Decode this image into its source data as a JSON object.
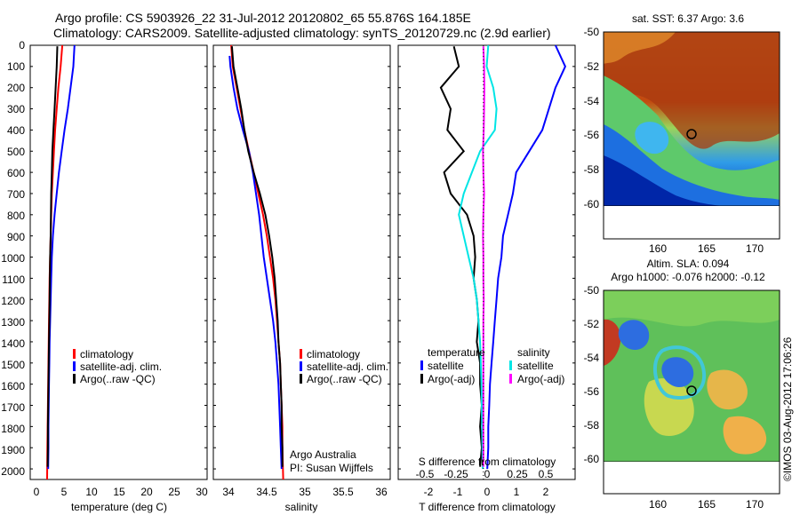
{
  "title": {
    "line1": "Argo profile: CS 5903926_22 31-Jul-2012 20120802_65 55.876S 164.185E",
    "line2": "Climatology: CARS2009. Satellite-adjusted climatology: synTS_20120729.nc (2.9d earlier)"
  },
  "depth_ticks": [
    "0",
    "100",
    "200",
    "300",
    "400",
    "500",
    "600",
    "700",
    "800",
    "900",
    "1000",
    "1100",
    "1200",
    "1300",
    "1400",
    "1500",
    "1600",
    "1700",
    "1800",
    "1900",
    "2000"
  ],
  "colors": {
    "climatology": "#ff0000",
    "satellite": "#0000ff",
    "argo": "#000000",
    "cyan": "#00e5e5",
    "magenta": "#ff00ff"
  },
  "panels": {
    "temperature": {
      "xlabel": "temperature (deg C)",
      "xticks": [
        "0",
        "5",
        "10",
        "15",
        "20",
        "25",
        "30"
      ],
      "legend": [
        "climatology",
        "satellite-adj. clim.",
        "Argo(..raw -QC)"
      ]
    },
    "salinity": {
      "xlabel": "salinity",
      "xticks": [
        "34",
        "34.5",
        "35",
        "35.5",
        "36"
      ],
      "legend": [
        "climatology",
        "satellite-adj. clim.",
        "Argo(..raw -QC)"
      ],
      "note1": "Argo Australia",
      "note2": "PI: Susan Wijffels"
    },
    "difference": {
      "xlabel": "T difference from climatology",
      "xticks": [
        "-2",
        "-1",
        "0",
        "1",
        "2"
      ],
      "s_label": "S difference from climatology",
      "s_ticks": [
        "-0.5",
        "-0.25",
        "0",
        "0.25",
        "0.5"
      ],
      "legend_temp_title": "temperature",
      "legend_sal_title": "salinity",
      "legend_temp": [
        "satellite",
        "Argo(-adj)"
      ],
      "legend_sal": [
        "satellite",
        "Argo(-adj)"
      ]
    }
  },
  "maps": {
    "sst_title": "sat. SST: 6.37 Argo: 3.6",
    "sla_title1": "Altim. SLA: 0.094",
    "sla_title2": "Argo h1000: -0.076 h2000: -0.12",
    "lat_ticks": [
      "-50",
      "-52",
      "-54",
      "-56",
      "-58",
      "-60"
    ],
    "lon_ticks": [
      "160",
      "165",
      "170"
    ],
    "float_position": {
      "lon": 164.185,
      "lat": -55.876
    }
  },
  "footer": "©IMOS 03-Aug-2012 17:06:26",
  "chart_data": [
    {
      "type": "line",
      "title": "",
      "xlabel": "temperature (deg C)",
      "ylabel": "",
      "xlim": [
        -1,
        31
      ],
      "ylim": [
        2050,
        0
      ],
      "series": [
        {
          "name": "climatology",
          "color": "#ff0000",
          "x": [
            4.8,
            4.5,
            4.1,
            3.8,
            3.5,
            3.3,
            3.1,
            2.9,
            2.8,
            2.7,
            2.6,
            2.5,
            2.45,
            2.4,
            2.35,
            2.3,
            2.25,
            2.2,
            2.15,
            2.1,
            2.05
          ],
          "y": [
            0,
            100,
            200,
            300,
            400,
            500,
            600,
            700,
            800,
            900,
            1000,
            1100,
            1200,
            1300,
            1400,
            1500,
            1600,
            1700,
            1800,
            1900,
            2050
          ]
        },
        {
          "name": "satellite-adj. clim.",
          "color": "#0000ff",
          "x": [
            7.0,
            6.8,
            6.3,
            5.8,
            5.2,
            4.7,
            4.2,
            3.8,
            3.4,
            3.1,
            2.9,
            2.8,
            2.7,
            2.6,
            2.5,
            2.45,
            2.4,
            2.35,
            2.3,
            2.3,
            2.25
          ],
          "y": [
            0,
            100,
            200,
            300,
            400,
            500,
            600,
            700,
            800,
            900,
            1000,
            1100,
            1200,
            1300,
            1400,
            1500,
            1600,
            1700,
            1800,
            1900,
            2000
          ]
        },
        {
          "name": "Argo(..raw -QC)",
          "color": "#000000",
          "x": [
            3.9,
            3.8,
            3.6,
            3.4,
            3.2,
            3.0,
            2.9,
            2.8,
            2.75,
            2.7,
            2.6,
            2.55,
            2.5,
            2.45,
            2.4,
            2.35,
            2.3,
            2.25,
            2.2,
            2.2,
            2.15
          ],
          "y": [
            5,
            100,
            200,
            300,
            400,
            500,
            600,
            700,
            800,
            900,
            1000,
            1100,
            1200,
            1300,
            1400,
            1500,
            1600,
            1700,
            1800,
            1900,
            1990
          ]
        }
      ]
    },
    {
      "type": "line",
      "title": "",
      "xlabel": "salinity",
      "ylabel": "",
      "xlim": [
        33.82,
        36.1
      ],
      "ylim": [
        2050,
        0
      ],
      "series": [
        {
          "name": "climatology",
          "color": "#ff0000",
          "x": [
            34.05,
            34.07,
            34.12,
            34.17,
            34.22,
            34.28,
            34.34,
            34.4,
            34.46,
            34.51,
            34.55,
            34.59,
            34.62,
            34.64,
            34.66,
            34.68,
            34.69,
            34.7,
            34.71,
            34.71,
            34.72
          ],
          "y": [
            0,
            100,
            200,
            300,
            400,
            500,
            600,
            700,
            800,
            900,
            1000,
            1100,
            1200,
            1300,
            1400,
            1500,
            1600,
            1700,
            1800,
            1900,
            2050
          ]
        },
        {
          "name": "satellite-adj. clim.",
          "color": "#0000ff",
          "x": [
            34.03,
            34.04,
            34.08,
            34.13,
            34.2,
            34.28,
            34.33,
            34.37,
            34.41,
            34.44,
            34.47,
            34.51,
            34.55,
            34.59,
            34.62,
            34.64,
            34.66,
            34.67,
            34.68,
            34.69,
            34.7
          ],
          "y": [
            50,
            100,
            200,
            300,
            400,
            500,
            600,
            700,
            800,
            900,
            1000,
            1100,
            1200,
            1300,
            1400,
            1500,
            1600,
            1700,
            1800,
            1900,
            2000
          ]
        },
        {
          "name": "Argo(..raw -QC)",
          "color": "#000000",
          "x": [
            34.06,
            34.08,
            34.13,
            34.18,
            34.22,
            34.27,
            34.34,
            34.42,
            34.49,
            34.54,
            34.58,
            34.61,
            34.63,
            34.65,
            34.66,
            34.68,
            34.69,
            34.7,
            34.7,
            34.71,
            34.71
          ],
          "y": [
            5,
            100,
            200,
            300,
            400,
            500,
            600,
            700,
            800,
            900,
            1000,
            1100,
            1200,
            1300,
            1400,
            1500,
            1600,
            1700,
            1800,
            1900,
            1990
          ]
        }
      ]
    },
    {
      "type": "line",
      "title": "",
      "xlabel": "T difference from climatology",
      "ylabel": "",
      "xlim": [
        -2.6,
        2.8
      ],
      "ylim": [
        2050,
        0
      ],
      "series": [
        {
          "name": "satellite",
          "group": "temperature",
          "color": "#0000ff",
          "x": [
            2.2,
            2.5,
            2.2,
            2.0,
            1.8,
            1.4,
            1.0,
            0.9,
            0.75,
            0.6,
            0.55,
            0.45,
            0.4,
            0.35,
            0.3,
            0.25,
            0.2,
            0.18,
            0.15,
            0.15,
            0.12
          ],
          "y": [
            0,
            100,
            200,
            300,
            400,
            500,
            600,
            700,
            800,
            900,
            1000,
            1100,
            1200,
            1300,
            1400,
            1500,
            1600,
            1700,
            1800,
            1900,
            2000
          ]
        },
        {
          "name": "Argo(-adj)",
          "group": "temperature",
          "color": "#000000",
          "x": [
            -0.9,
            -0.75,
            -1.3,
            -1.0,
            -1.1,
            -0.6,
            -1.2,
            -1.0,
            -0.5,
            -0.3,
            -0.25,
            -0.3,
            -0.2,
            -0.15,
            -0.2,
            -0.1,
            -0.1,
            -0.05,
            -0.1,
            -0.05,
            -0.1
          ],
          "y": [
            5,
            100,
            200,
            300,
            400,
            500,
            600,
            700,
            800,
            900,
            1000,
            1100,
            1200,
            1300,
            1400,
            1500,
            1600,
            1700,
            1800,
            1900,
            1990
          ]
        },
        {
          "name": "satellite",
          "group": "salinity",
          "color": "#00e5e5",
          "x": [
            0.15,
            0.1,
            0.3,
            0.4,
            0.35,
            -0.1,
            -0.35,
            -0.6,
            -0.75,
            -0.6,
            -0.45,
            -0.3,
            -0.2,
            -0.15,
            -0.1,
            -0.08,
            -0.06,
            -0.05,
            -0.04,
            -0.03,
            -0.02
          ],
          "y": [
            0,
            100,
            200,
            300,
            400,
            500,
            600,
            700,
            800,
            900,
            1000,
            1100,
            1200,
            1300,
            1400,
            1500,
            1600,
            1700,
            1800,
            1900,
            2000
          ]
        },
        {
          "name": "Argo(-adj)",
          "group": "salinity",
          "color": "#ff00ff",
          "x": [
            0.0,
            0.02,
            0.03,
            0.02,
            0.01,
            -0.01,
            0.0,
            0.02,
            0.0,
            -0.01,
            0.0,
            0.0,
            0.01,
            0.0,
            0.0,
            0.0,
            0.0,
            0.0,
            0.0,
            0.0,
            0.0
          ],
          "y": [
            5,
            100,
            200,
            300,
            400,
            500,
            600,
            700,
            800,
            900,
            1000,
            1100,
            1200,
            1300,
            1400,
            1500,
            1600,
            1700,
            1800,
            1900,
            1990
          ]
        }
      ]
    },
    {
      "type": "heatmap",
      "title": "sat. SST: 6.37 Argo: 3.6",
      "xlabel": "",
      "ylabel": "",
      "xlim": [
        155.8,
        173.6
      ],
      "ylim": [
        -60.0,
        -49.9
      ],
      "xticks": [
        160,
        165,
        170
      ],
      "yticks": [
        -50,
        -52,
        -54,
        -56,
        -58,
        -60
      ],
      "marker": {
        "lon": 164.185,
        "lat": -55.876
      }
    },
    {
      "type": "heatmap",
      "title": "Altim. SLA: 0.094 / Argo h1000: -0.076 h2000: -0.12",
      "xlabel": "",
      "ylabel": "",
      "xlim": [
        155.8,
        173.6
      ],
      "ylim": [
        -60.0,
        -49.9
      ],
      "xticks": [
        160,
        165,
        170
      ],
      "yticks": [
        -50,
        -52,
        -54,
        -56,
        -58,
        -60
      ],
      "marker": {
        "lon": 164.185,
        "lat": -55.876
      }
    }
  ]
}
